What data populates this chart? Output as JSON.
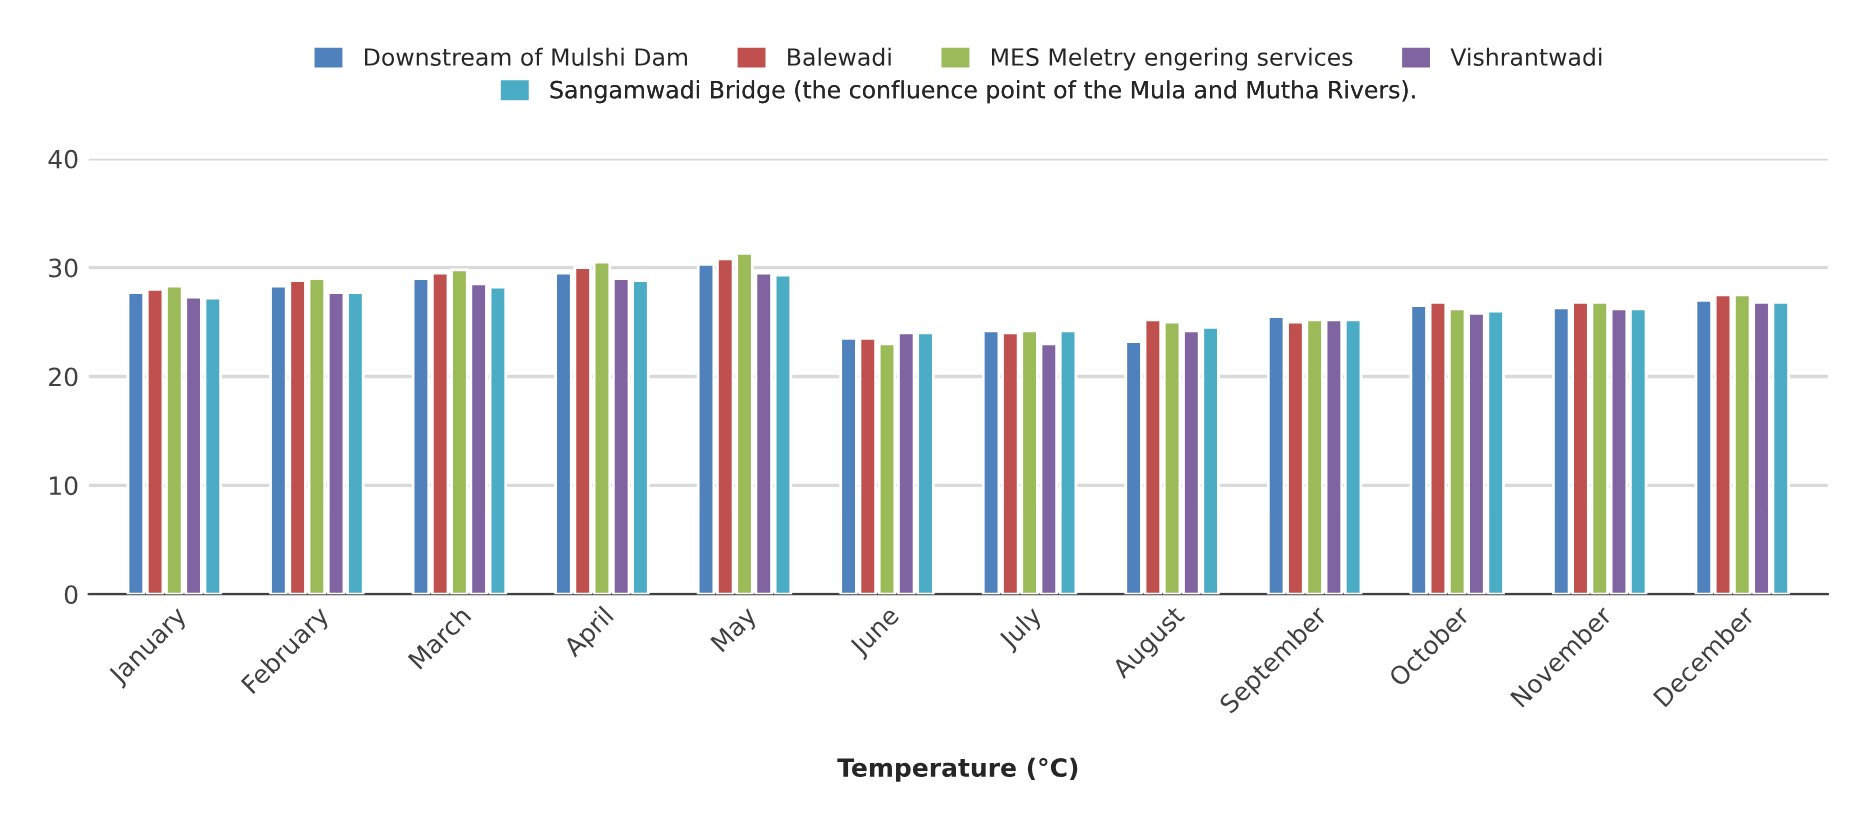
{
  "chart_data": {
    "type": "bar",
    "xlabel": "Temperature (°C)",
    "categories": [
      "January",
      "February",
      "March",
      "April",
      "May",
      "June",
      "July",
      "August",
      "September",
      "October",
      "November",
      "December"
    ],
    "series": [
      {
        "name": "Downstream of Mulshi Dam",
        "color": "#4f81bd",
        "values": [
          27.7,
          28.3,
          29,
          29.5,
          30.3,
          23.5,
          24.2,
          23.2,
          25.5,
          26.5,
          26.3,
          27
        ]
      },
      {
        "name": "Balewadi",
        "color": "#c0504d",
        "values": [
          28,
          28.8,
          29.5,
          30,
          30.8,
          23.5,
          24,
          25.2,
          25,
          26.8,
          26.8,
          27.5
        ]
      },
      {
        "name": "MES Meletry engering services",
        "color": "#9bbb59",
        "values": [
          28.3,
          29,
          29.8,
          30.5,
          31.3,
          23,
          24.2,
          25,
          25.2,
          26.2,
          26.8,
          27.5
        ]
      },
      {
        "name": "Vishrantwadi",
        "color": "#8064a2",
        "values": [
          27.3,
          27.7,
          28.5,
          29,
          29.5,
          24,
          23,
          24.2,
          25.2,
          25.8,
          26.2,
          26.8
        ]
      },
      {
        "name": "Sangamwadi Bridge (the confluence point of the Mula and Mutha Rivers).",
        "color": "#4bacc6",
        "values": [
          27.2,
          27.7,
          28.2,
          28.8,
          29.3,
          24,
          24.2,
          24.5,
          25.2,
          26,
          26.2,
          26.8
        ]
      }
    ],
    "ylim": [
      0,
      40
    ],
    "yticks": [
      0,
      10,
      20,
      30,
      40
    ],
    "grid": "y",
    "legend": "top"
  }
}
